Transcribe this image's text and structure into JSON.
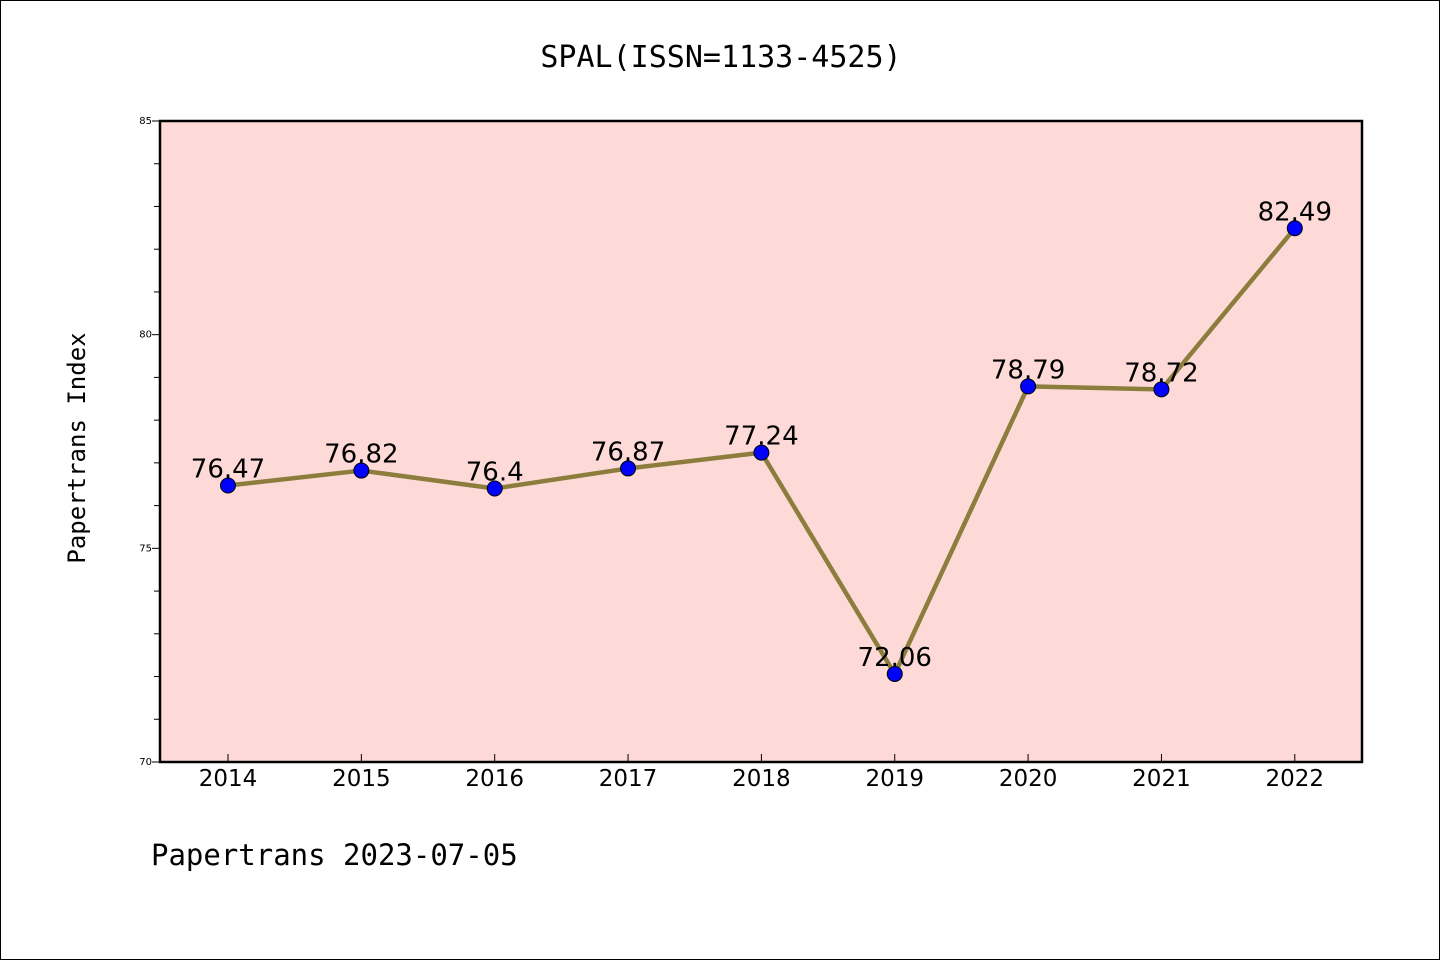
{
  "chart_data": {
    "type": "line",
    "title": "SPAL(ISSN=1133-4525)",
    "ylabel": "Papertrans Index",
    "xlabel": "",
    "categories": [
      "2014",
      "2015",
      "2016",
      "2017",
      "2018",
      "2019",
      "2020",
      "2021",
      "2022"
    ],
    "series": [
      {
        "values": [
          76.47,
          76.82,
          76.4,
          76.87,
          77.24,
          72.06,
          78.79,
          78.72,
          82.49
        ],
        "labels": [
          "76.47",
          "76.82",
          "76.4",
          "76.87",
          "77.24",
          "72.06",
          "78.79",
          "78.72",
          "82.49"
        ]
      }
    ],
    "ylim": [
      70,
      85
    ],
    "yticks": [
      "70",
      "75",
      "80",
      "85"
    ],
    "grid": false,
    "colors": {
      "plot_background": "#fddad8",
      "line": "#8c7d3c",
      "marker": "#0000ff"
    }
  },
  "footer": "Papertrans 2023-07-05"
}
